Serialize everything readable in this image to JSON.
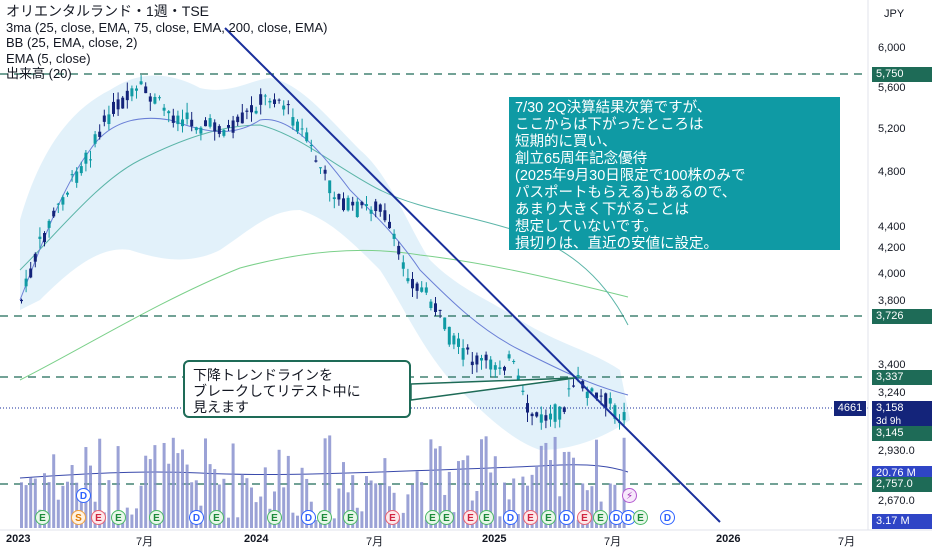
{
  "legend": {
    "title": "オリエンタルランド・1週・TSE",
    "ma": "3ma (25, close, EMA, 75, close, EMA, 200, close, EMA)",
    "bb": "BB (25, EMA, close, 2)",
    "ema": "EMA (5, close)",
    "volume": "出来高 (20)"
  },
  "currency": "JPY",
  "y_ticks": [
    "6,000",
    "5,600",
    "5,200",
    "4,800",
    "4,400",
    "4,200",
    "4,000",
    "3,800",
    "3,400",
    "3,240",
    "2,930.0",
    "2,670.0"
  ],
  "x_ticks": [
    "2023",
    "7月",
    "2024",
    "7月",
    "2025",
    "7月",
    "2026",
    "7月"
  ],
  "price_labels": {
    "line_5750": "5,750",
    "line_3726": "3,726",
    "line_3337": "3,337",
    "last_price": "3,158",
    "countdown": "3d 9h",
    "symbol_count": "4661",
    "line_3145": "3,145",
    "vol_ma": "20.76 M",
    "line_2757": "2,757.0",
    "volume_last": "3.17 M"
  },
  "note": {
    "lines": [
      "7/30 2Q決算結果次第ですが、",
      "ここからは下がったところは",
      "短期的に買い、",
      "創立65周年記念優待",
      "(2025年9月30日限定で100株のみで",
      "パスポートもらえる)もあるので、",
      "あまり大きく下がることは",
      "想定していないです。",
      "損切りは、直近の安値に設定。"
    ]
  },
  "callout": {
    "lines": [
      "下降トレンドラインを",
      "ブレークしてリテスト中に",
      "見えます"
    ]
  },
  "events": [
    "E",
    "S",
    "E",
    "E",
    "E",
    "D",
    "E",
    "E",
    "D",
    "E",
    "E",
    "E",
    "E",
    "E",
    "E",
    "E",
    "D",
    "E",
    "E",
    "D",
    "E",
    "E",
    "D",
    "D",
    "E"
  ],
  "colors": {
    "up": "#0f9aa4",
    "down": "#14247a",
    "trend": "#1a2f9c",
    "bb_fill": "#d8ecf8",
    "ema25": "#6a7fd6",
    "ema75": "#5bb5a8",
    "ema200": "#7bd08a",
    "hline": "#1e6b57",
    "volume": "#8a92cf"
  },
  "chart_data": {
    "type": "candlestick",
    "timeframe": "1W",
    "symbol": "4661",
    "last_close": 3158,
    "horizontal_levels": [
      5750,
      3726,
      3337,
      3145,
      2757
    ],
    "trendline": {
      "from": [
        "2023-05",
        6000
      ],
      "to": [
        "2026-01",
        2600
      ]
    }
  }
}
